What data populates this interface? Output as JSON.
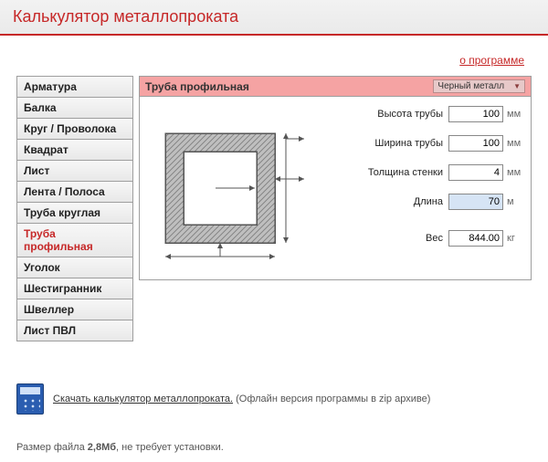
{
  "title": "Калькулятор металлопроката",
  "about_link": "о программе",
  "sidebar": {
    "items": [
      {
        "label": "Арматура"
      },
      {
        "label": "Балка"
      },
      {
        "label": "Круг / Проволока"
      },
      {
        "label": "Квадрат"
      },
      {
        "label": "Лист"
      },
      {
        "label": "Лента / Полоса"
      },
      {
        "label": "Труба круглая"
      },
      {
        "label": "Труба профильная"
      },
      {
        "label": "Уголок"
      },
      {
        "label": "Шестигранник"
      },
      {
        "label": "Швеллер"
      },
      {
        "label": "Лист ПВЛ"
      }
    ],
    "active_index": 7
  },
  "main": {
    "header_title": "Труба профильная",
    "metal_select": "Черный металл",
    "fields": {
      "height": {
        "label": "Высота трубы",
        "value": "100",
        "unit": "мм"
      },
      "width": {
        "label": "Ширина трубы",
        "value": "100",
        "unit": "мм"
      },
      "wall": {
        "label": "Толщина стенки",
        "value": "4",
        "unit": "мм"
      },
      "length": {
        "label": "Длина",
        "value": "70",
        "unit": "м"
      },
      "weight": {
        "label": "Вес",
        "value": "844.00",
        "unit": "кг"
      }
    }
  },
  "diagram": {
    "outer_stroke": "#555555",
    "hatch_fill": "#bfbfbf",
    "guide_color": "#555555",
    "background": "#ffffff"
  },
  "download": {
    "link_text": "Скачать калькулятор металлопроката.",
    "note": "(Офлайн версия программы в zip архиве)"
  },
  "footer": {
    "prefix": "Размер файла ",
    "size": "2,8Мб",
    "suffix": ", не требует установки."
  },
  "colors": {
    "accent": "#c62828",
    "header_bg": "#f5a3a3",
    "select_bg": "#e7c9c9",
    "highlight_input": "#d6e4f5"
  }
}
